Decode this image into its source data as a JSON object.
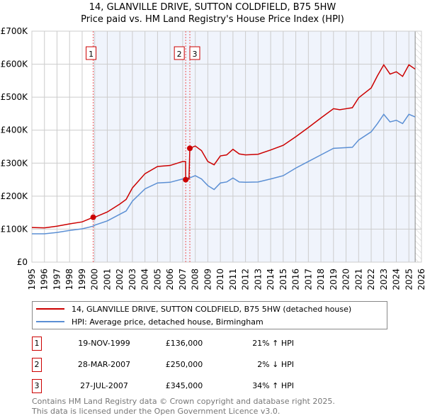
{
  "chart_data": {
    "type": "line",
    "title": "14, GLANVILLE DRIVE, SUTTON COLDFIELD, B75 5HW",
    "subtitle": "Price paid vs. HM Land Registry's House Price Index (HPI)",
    "xlim": [
      1995,
      2026
    ],
    "ylim": [
      0,
      700000
    ],
    "x_ticks": [
      "1995",
      "1996",
      "1997",
      "1998",
      "1999",
      "2000",
      "2001",
      "2002",
      "2003",
      "2004",
      "2005",
      "2006",
      "2007",
      "2008",
      "2009",
      "2010",
      "2011",
      "2012",
      "2013",
      "2014",
      "2015",
      "2016",
      "2017",
      "2018",
      "2019",
      "2020",
      "2021",
      "2022",
      "2023",
      "2024",
      "2025",
      "2026"
    ],
    "y_ticks": [
      {
        "value": 0,
        "label": "£0"
      },
      {
        "value": 100000,
        "label": "£100K"
      },
      {
        "value": 200000,
        "label": "£200K"
      },
      {
        "value": 300000,
        "label": "£300K"
      },
      {
        "value": 400000,
        "label": "£400K"
      },
      {
        "value": 500000,
        "label": "£500K"
      },
      {
        "value": 600000,
        "label": "£600K"
      },
      {
        "value": 700000,
        "label": "£700K"
      }
    ],
    "grid": true,
    "data_end": 2025.5,
    "series": [
      {
        "name": "14, GLANVILLE DRIVE, SUTTON COLDFIELD, B75 5HW (detached house)",
        "color": "#cc0000",
        "points": [
          [
            1995,
            105
          ],
          [
            1996,
            104
          ],
          [
            1997,
            109
          ],
          [
            1998,
            116
          ],
          [
            1999,
            122
          ],
          [
            1999.88,
            136
          ],
          [
            2000,
            136
          ],
          [
            2001,
            152
          ],
          [
            2002,
            176
          ],
          [
            2002.5,
            190
          ],
          [
            2003,
            225
          ],
          [
            2004,
            268
          ],
          [
            2005,
            290
          ],
          [
            2006,
            293
          ],
          [
            2007,
            305
          ],
          [
            2007.23,
            305
          ],
          [
            2007.24,
            250
          ],
          [
            2007.5,
            252
          ],
          [
            2007.57,
            345
          ],
          [
            2008,
            352
          ],
          [
            2008.5,
            338
          ],
          [
            2009,
            305
          ],
          [
            2009.5,
            295
          ],
          [
            2010,
            322
          ],
          [
            2010.5,
            325
          ],
          [
            2011,
            342
          ],
          [
            2011.5,
            328
          ],
          [
            2012,
            325
          ],
          [
            2013,
            327
          ],
          [
            2014,
            340
          ],
          [
            2015,
            354
          ],
          [
            2016,
            380
          ],
          [
            2017,
            408
          ],
          [
            2018,
            437
          ],
          [
            2019,
            465
          ],
          [
            2019.5,
            462
          ],
          [
            2020,
            465
          ],
          [
            2020.5,
            468
          ],
          [
            2021,
            498
          ],
          [
            2022,
            528
          ],
          [
            2022.5,
            565
          ],
          [
            2023,
            598
          ],
          [
            2023.5,
            570
          ],
          [
            2024,
            577
          ],
          [
            2024.5,
            563
          ],
          [
            2025,
            598
          ],
          [
            2025.5,
            585
          ]
        ]
      },
      {
        "name": "HPI: Average price, detached house, Birmingham",
        "color": "#5b8fd4",
        "points": [
          [
            1995,
            86
          ],
          [
            1996,
            86
          ],
          [
            1997,
            90
          ],
          [
            1998,
            96
          ],
          [
            1999,
            101
          ],
          [
            1999.88,
            109
          ],
          [
            2000,
            112
          ],
          [
            2001,
            125
          ],
          [
            2002,
            145
          ],
          [
            2002.5,
            155
          ],
          [
            2003,
            185
          ],
          [
            2004,
            222
          ],
          [
            2005,
            240
          ],
          [
            2006,
            242
          ],
          [
            2007,
            252
          ],
          [
            2007.6,
            256
          ],
          [
            2008,
            262
          ],
          [
            2008.5,
            252
          ],
          [
            2009,
            232
          ],
          [
            2009.5,
            220
          ],
          [
            2010,
            240
          ],
          [
            2010.5,
            243
          ],
          [
            2011,
            255
          ],
          [
            2011.5,
            243
          ],
          [
            2012,
            242
          ],
          [
            2013,
            243
          ],
          [
            2014,
            252
          ],
          [
            2015,
            262
          ],
          [
            2016,
            285
          ],
          [
            2017,
            305
          ],
          [
            2018,
            325
          ],
          [
            2019,
            345
          ],
          [
            2020,
            347
          ],
          [
            2020.5,
            348
          ],
          [
            2021,
            370
          ],
          [
            2022,
            395
          ],
          [
            2022.5,
            420
          ],
          [
            2023,
            448
          ],
          [
            2023.5,
            425
          ],
          [
            2024,
            430
          ],
          [
            2024.5,
            420
          ],
          [
            2025,
            448
          ],
          [
            2025.5,
            440
          ]
        ]
      }
    ],
    "sales": [
      {
        "id": "1",
        "x": 1999.88,
        "value": 136
      },
      {
        "id": "2",
        "x": 2007.24,
        "value": 250
      },
      {
        "id": "3",
        "x": 2007.57,
        "value": 345
      }
    ]
  },
  "legend": {
    "property": "14, GLANVILLE DRIVE, SUTTON COLDFIELD, B75 5HW (detached house)",
    "hpi": "HPI: Average price, detached house, Birmingham"
  },
  "transactions": [
    {
      "num": "1",
      "date": "19-NOV-1999",
      "price": "£136,000",
      "hpi": "21% ↑ HPI"
    },
    {
      "num": "2",
      "date": "28-MAR-2007",
      "price": "£250,000",
      "hpi": "2% ↓ HPI"
    },
    {
      "num": "3",
      "date": "27-JUL-2007",
      "price": "£345,000",
      "hpi": "34% ↑ HPI"
    }
  ],
  "footer": {
    "line1": "Contains HM Land Registry data © Crown copyright and database right 2025.",
    "line2": "This data is licensed under the Open Government Licence v3.0."
  },
  "colors": {
    "property": "#cc0000",
    "hpi": "#5b8fd4",
    "shade": "#f0f4fc"
  }
}
